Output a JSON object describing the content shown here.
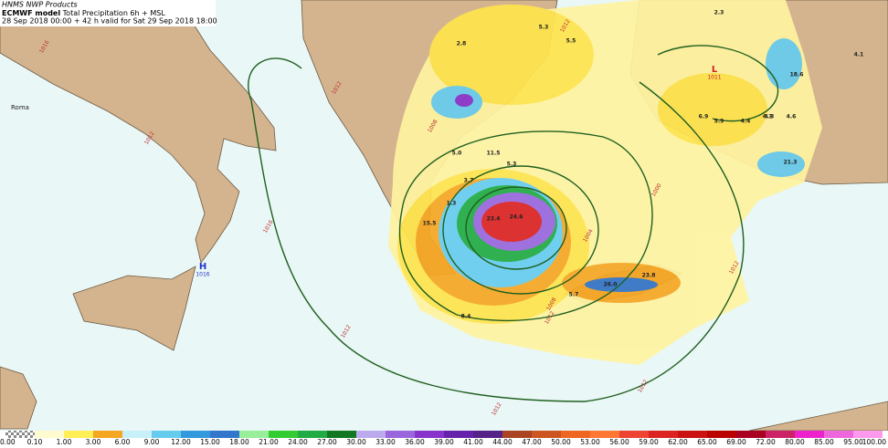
{
  "header": {
    "source": "HNMS NWP Products",
    "model": "ECMWF model",
    "product": "Total Precipitation 6h + MSL",
    "validity": "28 Sep 2018 00:00 + 42 h valid for Sat 29 Sep 2018 18:00"
  },
  "pressure_centers": [
    {
      "symbol": "H",
      "value": "1016"
    },
    {
      "symbol": "L",
      "value": "1011"
    }
  ],
  "place_labels": [
    "Roma"
  ],
  "isobar_labels": [
    "1016",
    "1012",
    "1012",
    "1016",
    "1012",
    "1012",
    "1012",
    "1012",
    "1008",
    "1004",
    "1000",
    "1012",
    "1008",
    "1012"
  ],
  "precip_labels": [
    "2.3",
    "5.5",
    "4.1",
    "2.8",
    "5.3",
    "18.6",
    "4.3",
    "6.9",
    "5.9",
    "4.4",
    "4.3",
    "4.6",
    "21.3",
    "11.5",
    "5.0",
    "5.3",
    "15.5",
    "1.3",
    "3.7",
    "23.4",
    "24.6",
    "5.7",
    "8.4",
    "23.8",
    "26.0"
  ],
  "colorbar": {
    "labels": [
      "0.00",
      "0.10",
      "1.00",
      "3.00",
      "6.00",
      "9.00",
      "12.00",
      "15.00",
      "18.00",
      "21.00",
      "24.00",
      "27.00",
      "30.00",
      "33.00",
      "36.00",
      "39.00",
      "41.00",
      "44.00",
      "47.00",
      "50.00",
      "53.00",
      "56.00",
      "59.00",
      "62.00",
      "65.00",
      "69.00",
      "72.00",
      "80.00",
      "85.00",
      "95.00",
      "100.00"
    ]
  }
}
